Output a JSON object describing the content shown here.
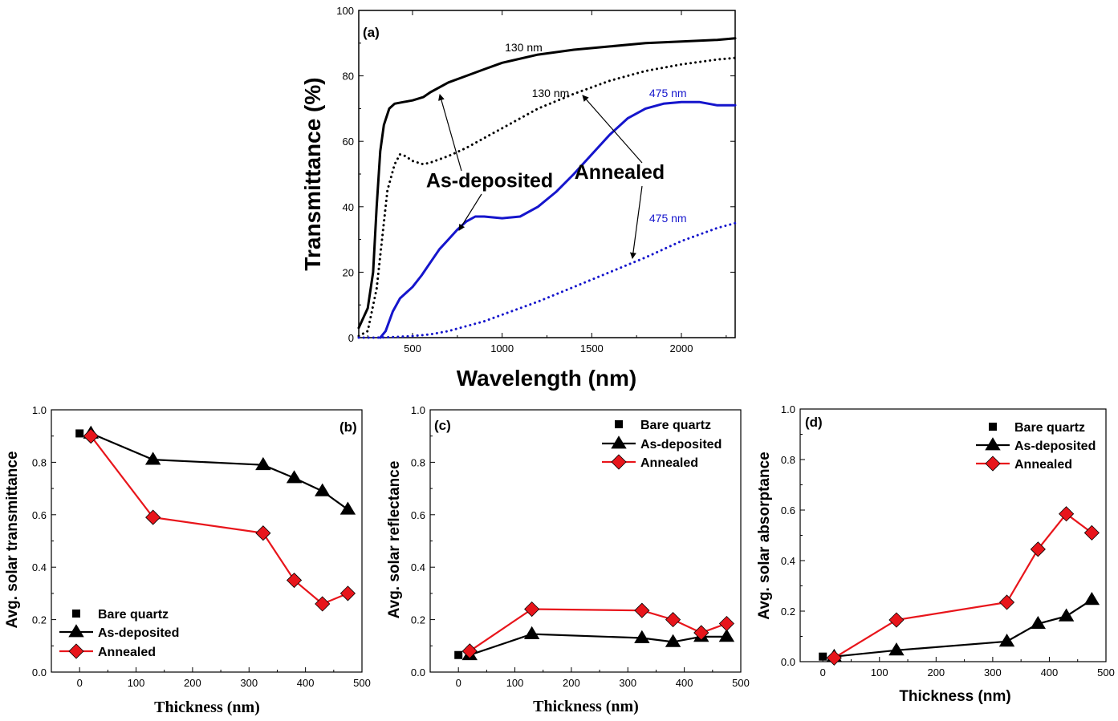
{
  "colors": {
    "black": "#000000",
    "blue": "#1515cc",
    "red": "#e8151b"
  },
  "chart_data": [
    {
      "type": "line",
      "panel": "(a)",
      "xlabel": "Wavelength (nm)",
      "ylabel": "Transmittance (%)",
      "xlim": [
        200,
        2300
      ],
      "ylim": [
        0,
        100
      ],
      "xticks": [
        500,
        1000,
        1500,
        2000
      ],
      "yticks": [
        0,
        20,
        40,
        60,
        80,
        100
      ],
      "series": [
        {
          "key": "asdep_130",
          "style": "solid",
          "color": "black",
          "x": [
            200,
            250,
            280,
            300,
            320,
            340,
            370,
            400,
            450,
            500,
            560,
            600,
            700,
            800,
            900,
            1000,
            1200,
            1400,
            1600,
            1800,
            2000,
            2200,
            2300
          ],
          "y": [
            3,
            9,
            20,
            40,
            57,
            65,
            70,
            71.5,
            72,
            72.5,
            73.5,
            75,
            78,
            80,
            82,
            84,
            86.5,
            88,
            89,
            90,
            90.5,
            91,
            91.5
          ]
        },
        {
          "key": "ann_130",
          "style": "dotted",
          "color": "black",
          "x": [
            200,
            250,
            300,
            330,
            360,
            400,
            430,
            460,
            500,
            560,
            600,
            700,
            800,
            900,
            1000,
            1200,
            1400,
            1600,
            1800,
            2000,
            2200,
            2300
          ],
          "y": [
            0.5,
            2,
            15,
            30,
            45,
            53,
            56,
            55.5,
            54,
            53,
            53.5,
            55.5,
            58,
            61,
            64,
            70,
            74.5,
            78.5,
            81.5,
            83.5,
            85,
            85.5
          ]
        },
        {
          "key": "asdep_475",
          "style": "solid",
          "color": "blue",
          "x": [
            320,
            350,
            390,
            430,
            470,
            500,
            550,
            600,
            650,
            700,
            750,
            800,
            850,
            900,
            1000,
            1100,
            1200,
            1300,
            1400,
            1500,
            1600,
            1700,
            1800,
            1900,
            2000,
            2100,
            2200,
            2300
          ],
          "y": [
            0,
            2,
            8,
            12,
            14,
            15.5,
            19,
            23,
            27,
            30,
            33,
            35.5,
            37,
            37,
            36.5,
            37,
            40,
            44.5,
            50,
            56,
            62,
            67,
            70,
            71.5,
            72,
            72,
            71,
            71
          ]
        },
        {
          "key": "ann_475",
          "style": "dotted",
          "color": "blue",
          "x": [
            200,
            300,
            400,
            500,
            600,
            700,
            800,
            900,
            1000,
            1200,
            1400,
            1600,
            1800,
            2000,
            2200,
            2300
          ],
          "y": [
            0,
            0,
            0.2,
            0.5,
            1,
            2,
            3.5,
            5,
            7,
            11,
            15.5,
            20,
            24.5,
            29.5,
            33.5,
            35
          ]
        }
      ],
      "curve_labels": [
        {
          "text": "130 nm",
          "color": "black",
          "x": 1120,
          "y": 87.5
        },
        {
          "text": "130 nm",
          "color": "black",
          "x": 1270,
          "y": 73.5
        },
        {
          "text": "475 nm",
          "color": "blue",
          "x": 1925,
          "y": 73.5
        },
        {
          "text": "475 nm",
          "color": "blue",
          "x": 1925,
          "y": 35.3
        }
      ],
      "annotations": [
        {
          "text": "As-deposited",
          "x": 930,
          "y": 46
        },
        {
          "text": "Annealed",
          "x": 1655,
          "y": 48.5
        }
      ]
    },
    {
      "type": "line",
      "panel": "(b)",
      "xlabel": "Thickness (nm)",
      "ylabel": "Avg. solar transmittance",
      "xlim": [
        -50,
        500
      ],
      "ylim": [
        0,
        1.0
      ],
      "xticks": [
        0,
        100,
        200,
        300,
        400,
        500
      ],
      "yticks": [
        0.0,
        0.2,
        0.4,
        0.6,
        0.8,
        1.0
      ],
      "legend_position": "bottom-left",
      "bare_quartz": {
        "x": 0,
        "y": 0.91
      },
      "series": [
        {
          "name": "As-deposited",
          "x": [
            20,
            130,
            325,
            380,
            430,
            475
          ],
          "y": [
            0.91,
            0.81,
            0.79,
            0.74,
            0.69,
            0.62
          ]
        },
        {
          "name": "Annealed",
          "x": [
            20,
            130,
            325,
            380,
            430,
            475
          ],
          "y": [
            0.9,
            0.59,
            0.53,
            0.35,
            0.26,
            0.3
          ]
        }
      ]
    },
    {
      "type": "line",
      "panel": "(c)",
      "xlabel": "Thickness (nm)",
      "ylabel": "Avg. solar reflectance",
      "xlim": [
        -50,
        500
      ],
      "ylim": [
        0,
        1.0
      ],
      "xticks": [
        0,
        100,
        200,
        300,
        400,
        500
      ],
      "yticks": [
        0.0,
        0.2,
        0.4,
        0.6,
        0.8,
        1.0
      ],
      "legend_position": "top-right",
      "bare_quartz": {
        "x": 0,
        "y": 0.065
      },
      "series": [
        {
          "name": "As-deposited",
          "x": [
            20,
            130,
            325,
            380,
            430,
            475
          ],
          "y": [
            0.065,
            0.145,
            0.13,
            0.115,
            0.135,
            0.135
          ]
        },
        {
          "name": "Annealed",
          "x": [
            20,
            130,
            325,
            380,
            430,
            475
          ],
          "y": [
            0.08,
            0.24,
            0.235,
            0.2,
            0.15,
            0.185
          ]
        }
      ]
    },
    {
      "type": "line",
      "panel": "(d)",
      "xlabel": "Thickness (nm)",
      "ylabel": "Avg. solar absorptance",
      "xlim": [
        -40,
        500
      ],
      "ylim": [
        0,
        1.0
      ],
      "xticks": [
        0,
        100,
        200,
        300,
        400,
        500
      ],
      "yticks": [
        0.0,
        0.2,
        0.4,
        0.6,
        0.8,
        1.0
      ],
      "legend_position": "top-right",
      "bare_quartz": {
        "x": 0,
        "y": 0.02
      },
      "series": [
        {
          "name": "As-deposited",
          "x": [
            20,
            130,
            325,
            380,
            430,
            475
          ],
          "y": [
            0.02,
            0.045,
            0.08,
            0.15,
            0.18,
            0.245
          ]
        },
        {
          "name": "Annealed",
          "x": [
            20,
            130,
            325,
            380,
            430,
            475
          ],
          "y": [
            0.015,
            0.165,
            0.235,
            0.445,
            0.585,
            0.51
          ]
        }
      ]
    }
  ],
  "legend": {
    "bare_quartz": "Bare quartz",
    "as_deposited": "As-deposited",
    "annealed": "Annealed"
  }
}
